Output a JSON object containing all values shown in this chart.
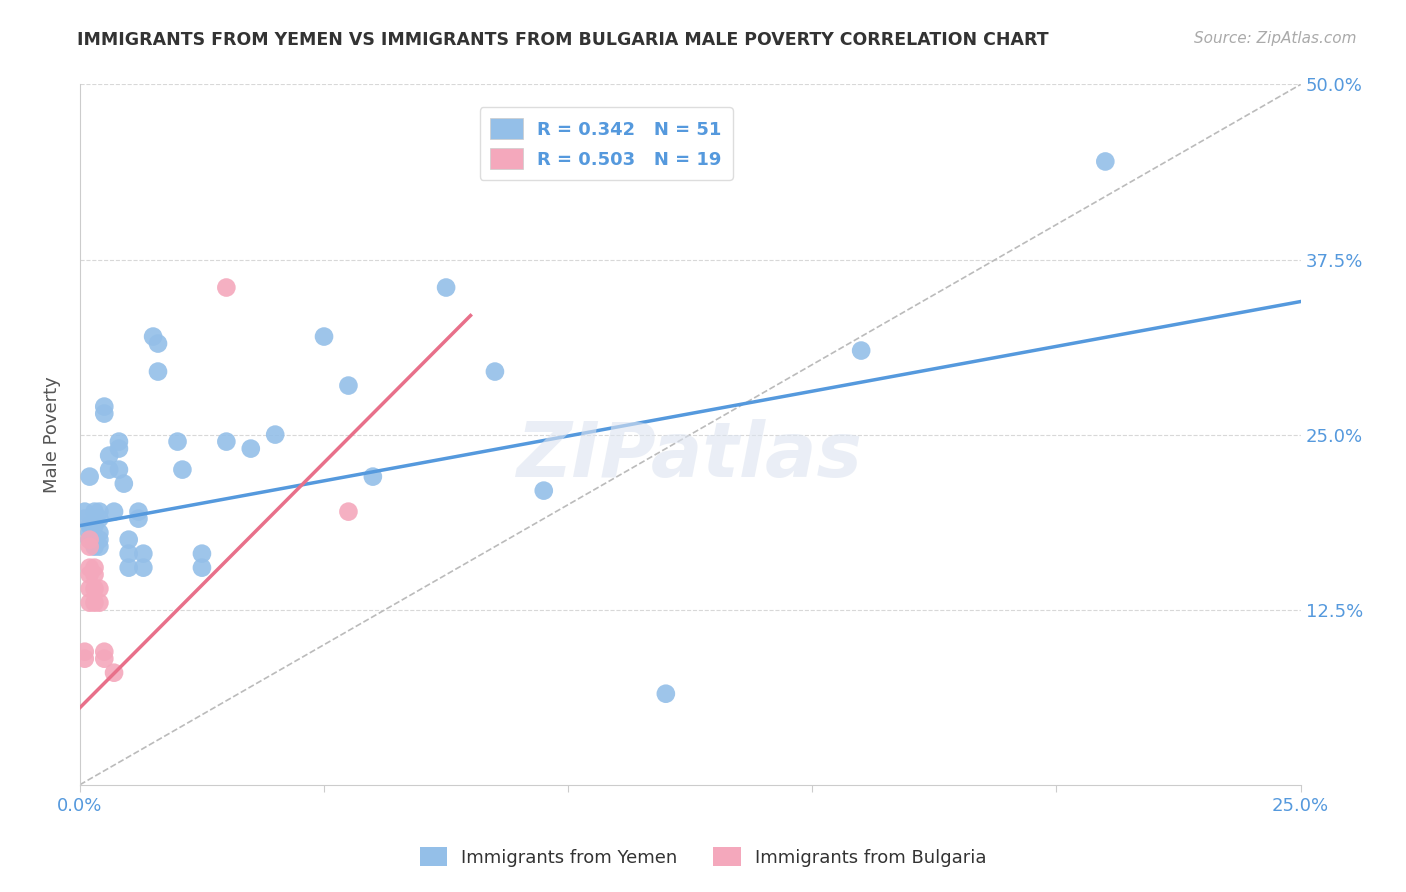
{
  "title": "IMMIGRANTS FROM YEMEN VS IMMIGRANTS FROM BULGARIA MALE POVERTY CORRELATION CHART",
  "source": "Source: ZipAtlas.com",
  "ylabel": "Male Poverty",
  "xlim": [
    0.0,
    0.25
  ],
  "ylim": [
    0.0,
    0.5
  ],
  "xticks": [
    0.0,
    0.05,
    0.1,
    0.15,
    0.2,
    0.25
  ],
  "yticks": [
    0.0,
    0.125,
    0.25,
    0.375,
    0.5
  ],
  "xticklabels": [
    "0.0%",
    "",
    "",
    "",
    "",
    "25.0%"
  ],
  "yticklabels": [
    "",
    "12.5%",
    "25.0%",
    "37.5%",
    "50.0%"
  ],
  "yemen_color": "#94bfe8",
  "bulgaria_color": "#f4a8bc",
  "yemen_line_color": "#5599dd",
  "bulgaria_line_color": "#e8708a",
  "yemen_R": 0.342,
  "yemen_N": 51,
  "bulgaria_R": 0.503,
  "bulgaria_N": 19,
  "watermark": "ZIPatlas",
  "yemen_trendline": [
    [
      0.0,
      0.25
    ],
    [
      0.185,
      0.345
    ]
  ],
  "bulgaria_trendline": [
    [
      0.0,
      0.08
    ],
    [
      0.055,
      0.335
    ]
  ],
  "yemen_points": [
    [
      0.001,
      0.195
    ],
    [
      0.001,
      0.19
    ],
    [
      0.002,
      0.22
    ],
    [
      0.002,
      0.185
    ],
    [
      0.002,
      0.18
    ],
    [
      0.002,
      0.175
    ],
    [
      0.003,
      0.185
    ],
    [
      0.003,
      0.175
    ],
    [
      0.003,
      0.17
    ],
    [
      0.003,
      0.195
    ],
    [
      0.003,
      0.175
    ],
    [
      0.004,
      0.195
    ],
    [
      0.004,
      0.19
    ],
    [
      0.004,
      0.18
    ],
    [
      0.004,
      0.175
    ],
    [
      0.004,
      0.17
    ],
    [
      0.005,
      0.27
    ],
    [
      0.005,
      0.265
    ],
    [
      0.006,
      0.235
    ],
    [
      0.006,
      0.225
    ],
    [
      0.007,
      0.195
    ],
    [
      0.008,
      0.245
    ],
    [
      0.008,
      0.24
    ],
    [
      0.008,
      0.225
    ],
    [
      0.009,
      0.215
    ],
    [
      0.01,
      0.175
    ],
    [
      0.01,
      0.165
    ],
    [
      0.01,
      0.155
    ],
    [
      0.012,
      0.195
    ],
    [
      0.012,
      0.19
    ],
    [
      0.013,
      0.165
    ],
    [
      0.013,
      0.155
    ],
    [
      0.015,
      0.32
    ],
    [
      0.016,
      0.315
    ],
    [
      0.016,
      0.295
    ],
    [
      0.02,
      0.245
    ],
    [
      0.021,
      0.225
    ],
    [
      0.025,
      0.165
    ],
    [
      0.025,
      0.155
    ],
    [
      0.03,
      0.245
    ],
    [
      0.035,
      0.24
    ],
    [
      0.04,
      0.25
    ],
    [
      0.05,
      0.32
    ],
    [
      0.055,
      0.285
    ],
    [
      0.06,
      0.22
    ],
    [
      0.075,
      0.355
    ],
    [
      0.085,
      0.295
    ],
    [
      0.095,
      0.21
    ],
    [
      0.12,
      0.065
    ],
    [
      0.16,
      0.31
    ],
    [
      0.21,
      0.445
    ]
  ],
  "bulgaria_points": [
    [
      0.001,
      0.095
    ],
    [
      0.001,
      0.09
    ],
    [
      0.002,
      0.175
    ],
    [
      0.002,
      0.17
    ],
    [
      0.002,
      0.155
    ],
    [
      0.002,
      0.15
    ],
    [
      0.002,
      0.14
    ],
    [
      0.002,
      0.13
    ],
    [
      0.003,
      0.155
    ],
    [
      0.003,
      0.15
    ],
    [
      0.003,
      0.14
    ],
    [
      0.003,
      0.13
    ],
    [
      0.004,
      0.14
    ],
    [
      0.004,
      0.13
    ],
    [
      0.005,
      0.095
    ],
    [
      0.005,
      0.09
    ],
    [
      0.007,
      0.08
    ],
    [
      0.03,
      0.355
    ],
    [
      0.055,
      0.195
    ]
  ]
}
